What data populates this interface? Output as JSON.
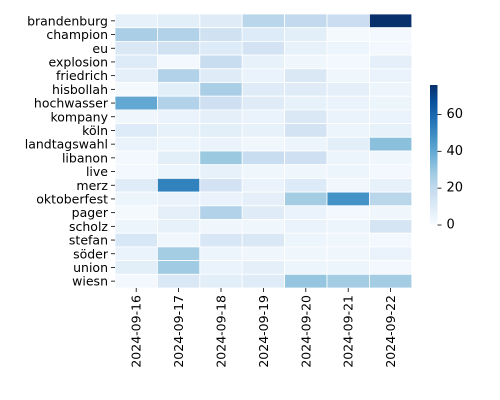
{
  "chart_data": {
    "type": "heatmap",
    "title": "",
    "xlabel": "",
    "ylabel": "",
    "colormap": "Blues",
    "color_range": [
      0,
      76
    ],
    "colorbar_ticks": [
      "0",
      "20",
      "40",
      "60"
    ],
    "colorbar_tick_values": [
      0,
      20,
      40,
      60
    ],
    "rows": [
      "brandenburg",
      "champion",
      "eu",
      "explosion",
      "friedrich",
      "hisbollah",
      "hochwasser",
      "kompany",
      "köln",
      "landtagswahl",
      "libanon",
      "live",
      "merz",
      "oktoberfest",
      "pager",
      "scholz",
      "stefan",
      "söder",
      "union",
      "wiesn"
    ],
    "columns": [
      "2024-09-16",
      "2024-09-17",
      "2024-09-18",
      "2024-09-19",
      "2024-09-20",
      "2024-09-21",
      "2024-09-22"
    ],
    "values": [
      [
        6,
        8,
        9,
        22,
        20,
        17,
        76
      ],
      [
        26,
        24,
        15,
        10,
        8,
        1,
        2
      ],
      [
        11,
        15,
        10,
        14,
        6,
        4,
        2
      ],
      [
        10,
        2,
        18,
        6,
        3,
        2,
        7
      ],
      [
        7,
        24,
        9,
        5,
        11,
        3,
        5
      ],
      [
        1,
        8,
        26,
        9,
        9,
        7,
        4
      ],
      [
        40,
        24,
        16,
        9,
        6,
        5,
        4
      ],
      [
        3,
        5,
        7,
        5,
        11,
        5,
        5
      ],
      [
        10,
        6,
        8,
        6,
        14,
        4,
        6
      ],
      [
        5,
        4,
        5,
        3,
        4,
        8,
        32
      ],
      [
        2,
        8,
        29,
        18,
        16,
        4,
        3
      ],
      [
        2,
        4,
        6,
        3,
        3,
        4,
        2
      ],
      [
        9,
        52,
        14,
        5,
        10,
        3,
        6
      ],
      [
        4,
        5,
        5,
        7,
        27,
        47,
        22
      ],
      [
        1,
        7,
        24,
        9,
        5,
        2,
        3
      ],
      [
        4,
        6,
        3,
        3,
        5,
        4,
        13
      ],
      [
        12,
        3,
        12,
        11,
        4,
        3,
        2
      ],
      [
        5,
        27,
        4,
        3,
        3,
        3,
        5
      ],
      [
        8,
        28,
        5,
        7,
        4,
        4,
        2
      ],
      [
        2,
        11,
        8,
        9,
        30,
        27,
        27
      ]
    ]
  }
}
